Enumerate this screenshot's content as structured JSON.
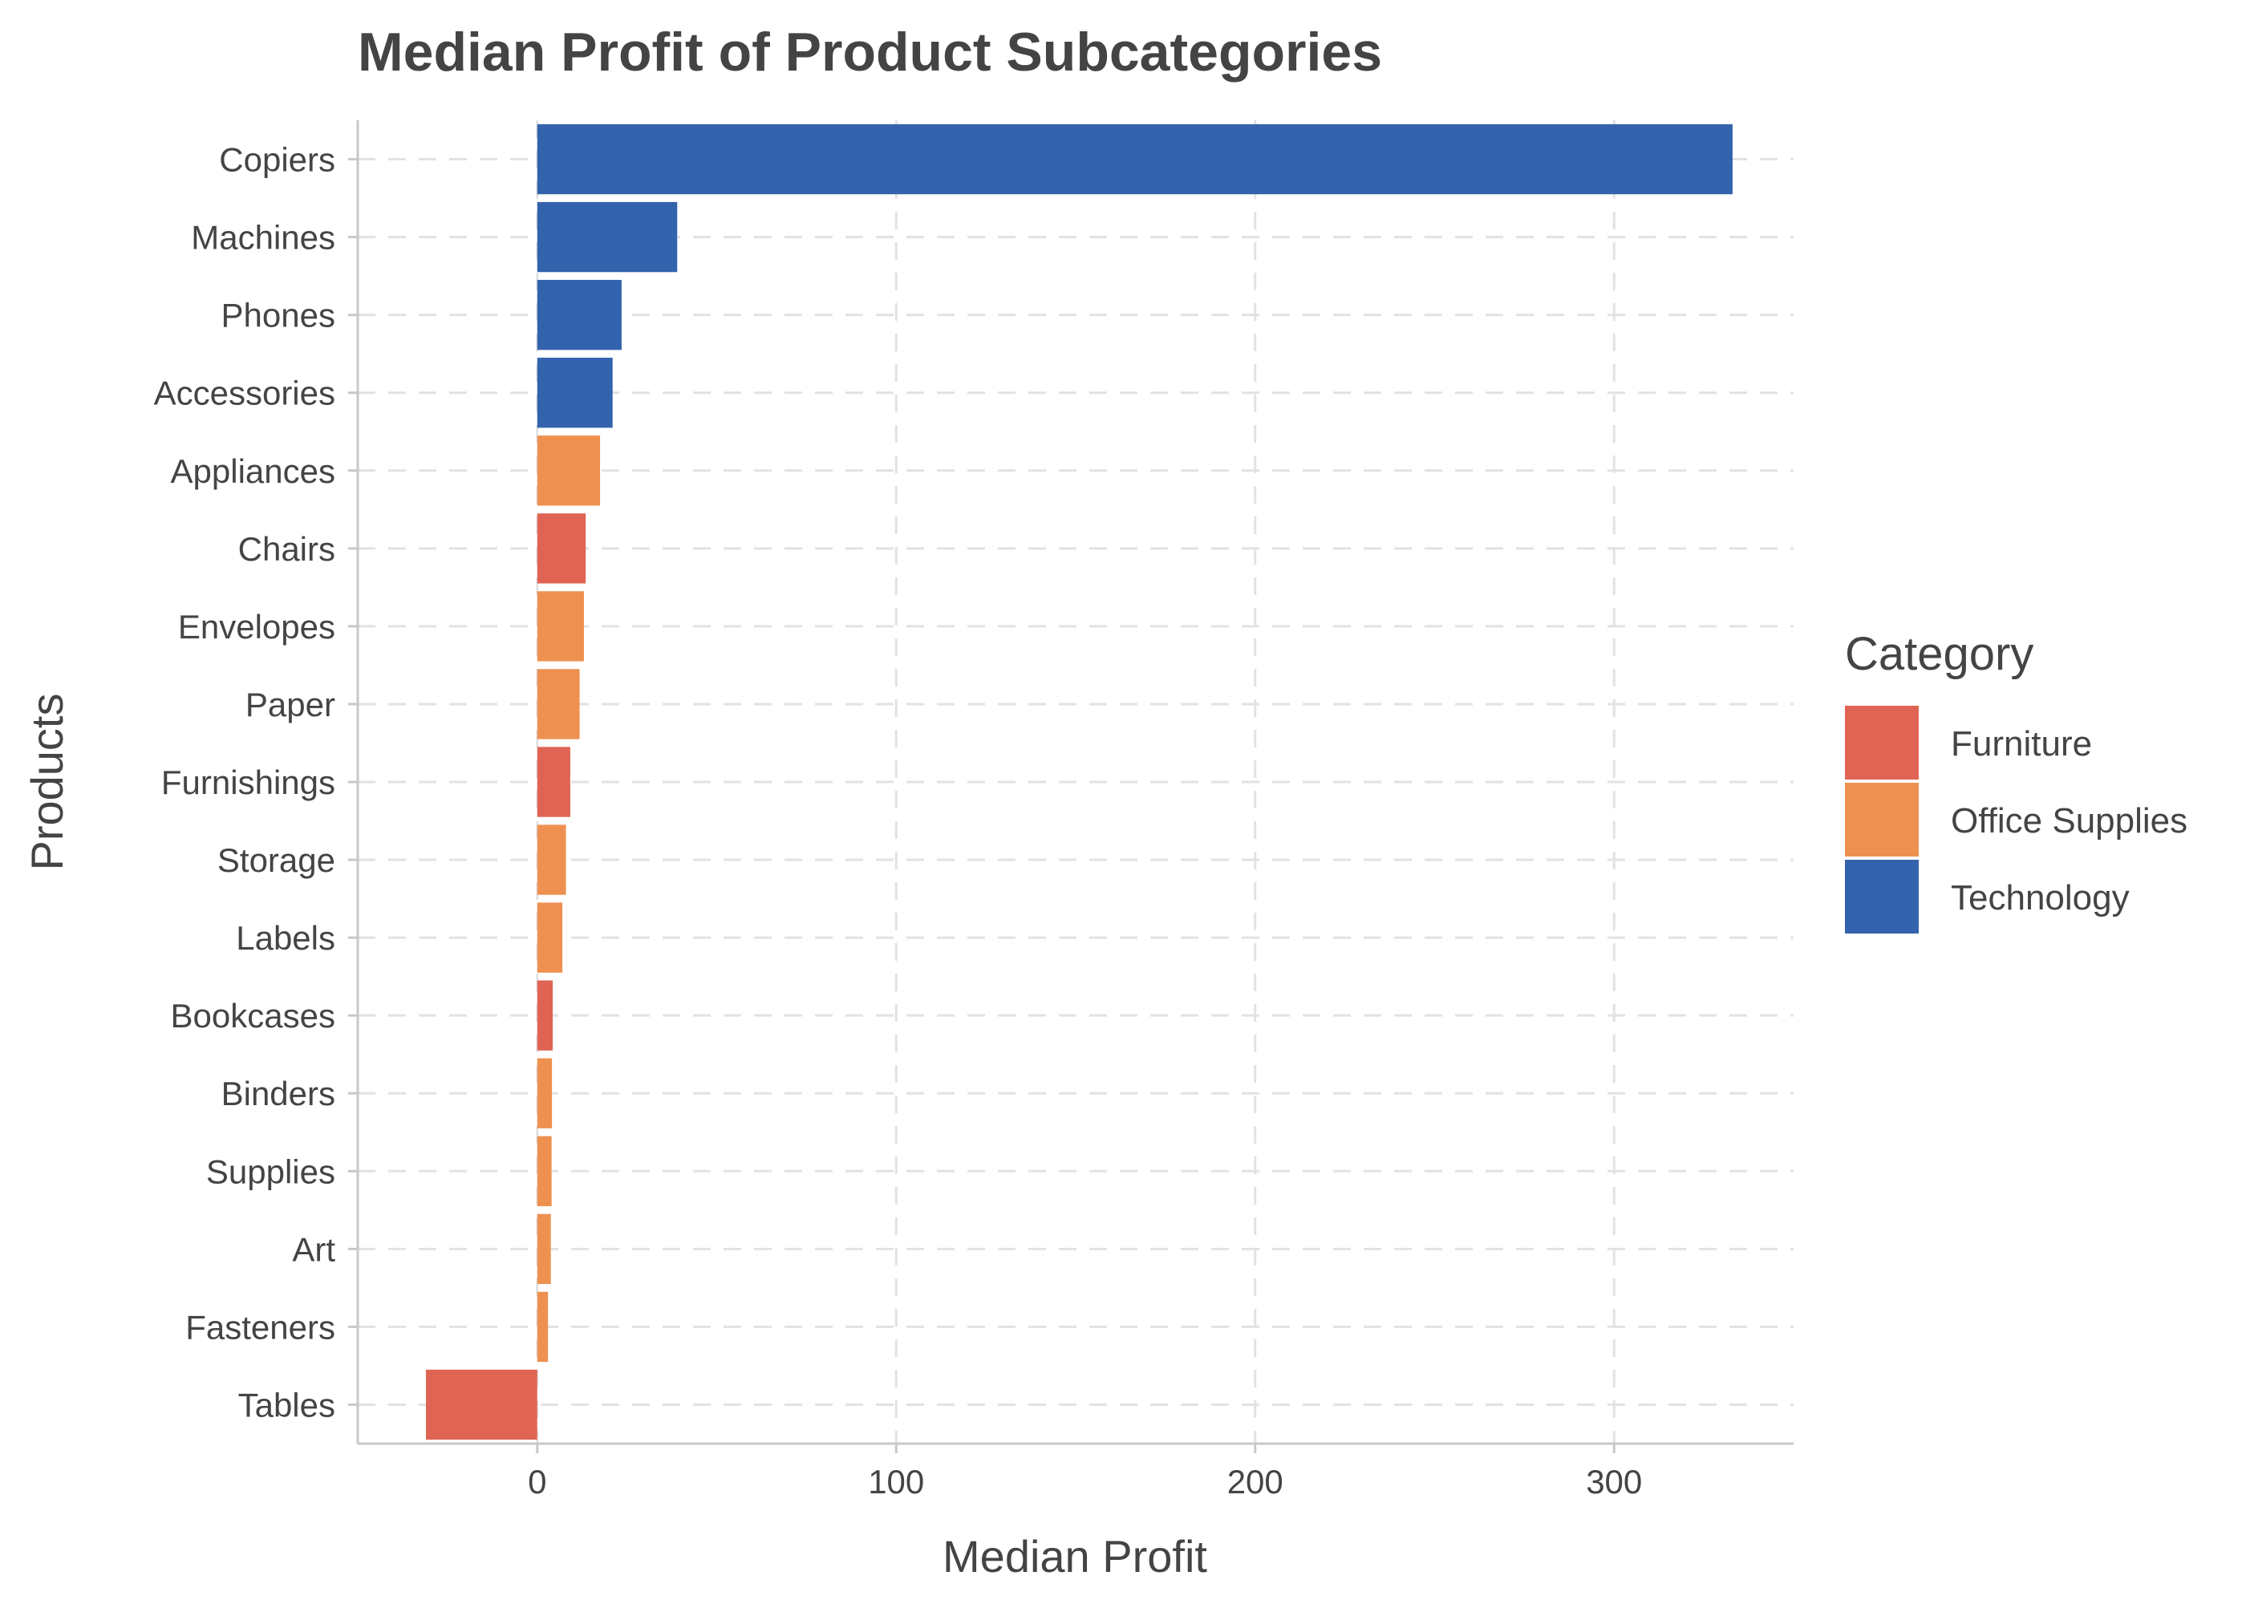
{
  "chart_data": {
    "type": "bar",
    "orientation": "horizontal",
    "title": "Median Profit of Product Subcategories",
    "xlabel": "Median Profit",
    "ylabel": "Products",
    "xlim": [
      -50,
      350
    ],
    "xticks": [
      0,
      100,
      200,
      300
    ],
    "grid": true,
    "legend": {
      "title": "Category",
      "position": "right",
      "entries": [
        {
          "name": "Furniture",
          "color": "#e06454"
        },
        {
          "name": "Office Supplies",
          "color": "#ee9150"
        },
        {
          "name": "Technology",
          "color": "#3363ad"
        }
      ]
    },
    "categories": [
      "Copiers",
      "Machines",
      "Phones",
      "Accessories",
      "Appliances",
      "Chairs",
      "Envelopes",
      "Paper",
      "Furnishings",
      "Storage",
      "Labels",
      "Bookcases",
      "Binders",
      "Supplies",
      "Art",
      "Fasteners",
      "Tables"
    ],
    "values": [
      333,
      39,
      23.5,
      21,
      17.5,
      13.5,
      13,
      11.8,
      9.2,
      8,
      7,
      4.3,
      4.1,
      4,
      3.8,
      3,
      -31
    ],
    "groups": [
      "Technology",
      "Technology",
      "Technology",
      "Technology",
      "Office Supplies",
      "Furniture",
      "Office Supplies",
      "Office Supplies",
      "Furniture",
      "Office Supplies",
      "Office Supplies",
      "Furniture",
      "Office Supplies",
      "Office Supplies",
      "Office Supplies",
      "Office Supplies",
      "Furniture"
    ]
  }
}
